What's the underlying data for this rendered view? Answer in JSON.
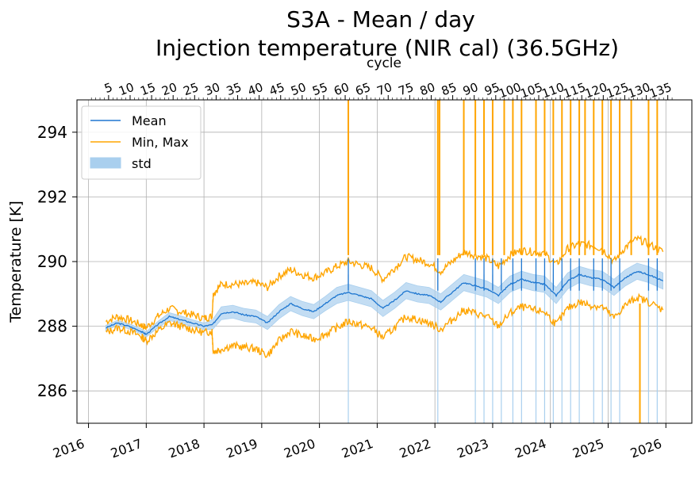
{
  "chart_data": {
    "type": "line",
    "title": "S3A - Mean / day",
    "subtitle": "Injection temperature (NIR cal) (36.5GHz)",
    "ylabel": "Temperature [K]",
    "x2label": "cycle",
    "xlim": [
      2015.8,
      2026.45
    ],
    "ylim": [
      285.0,
      295.0
    ],
    "grid": true,
    "legend_position": "upper-left",
    "yticks": [
      286,
      288,
      290,
      292,
      294
    ],
    "xticks": [
      2016,
      2017,
      2018,
      2019,
      2020,
      2021,
      2022,
      2023,
      2024,
      2025,
      2026
    ],
    "x_tick_labels": [
      "2016",
      "2017",
      "2018",
      "2019",
      "2020",
      "2021",
      "2022",
      "2023",
      "2024",
      "2025",
      "2026"
    ],
    "cycle_ticks": [
      5,
      10,
      15,
      20,
      25,
      30,
      35,
      40,
      45,
      50,
      55,
      60,
      65,
      70,
      75,
      80,
      85,
      90,
      95,
      100,
      105,
      110,
      115,
      120,
      125,
      130,
      135
    ],
    "cycle_tick_labels": [
      "5",
      "10",
      "15",
      "20",
      "25",
      "30",
      "35",
      "40",
      "45",
      "50",
      "55",
      "60",
      "65",
      "70",
      "75",
      "80",
      "85",
      "90",
      "95",
      "100",
      "105",
      "110",
      "115",
      "120",
      "125",
      "130",
      "135"
    ],
    "colors": {
      "mean": "#1f77d0",
      "minmax": "#ffa500",
      "std": "#a9cfee"
    },
    "legend": [
      {
        "key": "mean",
        "label": "Mean"
      },
      {
        "key": "minmax",
        "label": "Min, Max"
      },
      {
        "key": "std",
        "label": "std"
      }
    ],
    "series": [
      {
        "name": "Mean",
        "x": [
          2016.3,
          2016.5,
          2016.7,
          2016.9,
          2017.0,
          2017.2,
          2017.4,
          2017.6,
          2017.8,
          2018.0,
          2018.15,
          2018.3,
          2018.5,
          2018.7,
          2018.9,
          2019.1,
          2019.3,
          2019.5,
          2019.7,
          2019.9,
          2020.1,
          2020.3,
          2020.5,
          2020.7,
          2020.9,
          2021.1,
          2021.3,
          2021.5,
          2021.7,
          2021.9,
          2022.1,
          2022.3,
          2022.5,
          2022.7,
          2022.9,
          2023.1,
          2023.3,
          2023.5,
          2023.7,
          2023.9,
          2024.1,
          2024.3,
          2024.5,
          2024.7,
          2024.9,
          2025.1,
          2025.3,
          2025.5,
          2025.7,
          2025.95
        ],
        "values": [
          287.95,
          288.1,
          288.0,
          287.85,
          287.75,
          288.05,
          288.3,
          288.2,
          288.1,
          288.0,
          288.05,
          288.4,
          288.45,
          288.35,
          288.3,
          288.1,
          288.45,
          288.7,
          288.55,
          288.45,
          288.7,
          288.95,
          289.05,
          288.95,
          288.85,
          288.55,
          288.8,
          289.1,
          289.0,
          288.95,
          288.75,
          289.05,
          289.35,
          289.25,
          289.15,
          288.95,
          289.3,
          289.45,
          289.35,
          289.3,
          288.95,
          289.4,
          289.6,
          289.5,
          289.45,
          289.2,
          289.5,
          289.7,
          289.6,
          289.4
        ],
        "std": [
          0.08,
          0.08,
          0.08,
          0.08,
          0.08,
          0.1,
          0.12,
          0.12,
          0.1,
          0.1,
          0.15,
          0.2,
          0.2,
          0.2,
          0.2,
          0.2,
          0.22,
          0.22,
          0.22,
          0.22,
          0.22,
          0.25,
          0.25,
          0.25,
          0.25,
          0.25,
          0.25,
          0.25,
          0.25,
          0.25,
          0.25,
          0.25,
          0.25,
          0.25,
          0.25,
          0.25,
          0.25,
          0.25,
          0.25,
          0.25,
          0.25,
          0.25,
          0.25,
          0.25,
          0.25,
          0.25,
          0.25,
          0.25,
          0.25,
          0.25
        ]
      },
      {
        "name": "Max",
        "x": [
          2016.3,
          2016.5,
          2016.7,
          2016.9,
          2017.0,
          2017.2,
          2017.4,
          2017.6,
          2017.8,
          2018.0,
          2018.14,
          2018.16,
          2018.3,
          2018.5,
          2018.7,
          2018.9,
          2019.1,
          2019.3,
          2019.5,
          2019.7,
          2019.9,
          2020.1,
          2020.3,
          2020.5,
          2020.7,
          2020.9,
          2021.1,
          2021.3,
          2021.5,
          2021.7,
          2021.9,
          2022.1,
          2022.3,
          2022.5,
          2022.7,
          2022.9,
          2023.1,
          2023.3,
          2023.5,
          2023.7,
          2023.9,
          2024.1,
          2024.3,
          2024.5,
          2024.7,
          2024.9,
          2025.1,
          2025.3,
          2025.5,
          2025.7,
          2025.95
        ],
        "values": [
          288.15,
          288.3,
          288.2,
          288.05,
          287.95,
          288.3,
          288.55,
          288.45,
          288.35,
          288.25,
          288.3,
          289.0,
          289.3,
          289.3,
          289.3,
          289.35,
          289.2,
          289.55,
          289.75,
          289.6,
          289.5,
          289.65,
          289.85,
          290.0,
          289.9,
          289.8,
          289.45,
          289.8,
          290.15,
          290.05,
          289.95,
          289.7,
          290.0,
          290.3,
          290.2,
          290.1,
          289.85,
          290.2,
          290.35,
          290.3,
          290.25,
          289.9,
          290.4,
          290.55,
          290.5,
          290.4,
          290.0,
          290.45,
          290.7,
          290.55,
          290.3
        ]
      },
      {
        "name": "Min",
        "x": [
          2016.3,
          2016.5,
          2016.7,
          2016.9,
          2017.0,
          2017.2,
          2017.4,
          2017.6,
          2017.8,
          2018.0,
          2018.14,
          2018.16,
          2018.3,
          2018.5,
          2018.7,
          2018.9,
          2019.1,
          2019.3,
          2019.5,
          2019.7,
          2019.9,
          2020.1,
          2020.3,
          2020.5,
          2020.7,
          2020.9,
          2021.1,
          2021.3,
          2021.5,
          2021.7,
          2021.9,
          2022.1,
          2022.3,
          2022.5,
          2022.7,
          2022.9,
          2023.1,
          2023.3,
          2023.5,
          2023.7,
          2023.9,
          2024.1,
          2024.3,
          2024.5,
          2024.7,
          2024.9,
          2025.1,
          2025.3,
          2025.5,
          2025.7,
          2025.95
        ],
        "values": [
          287.8,
          287.95,
          287.85,
          287.7,
          287.55,
          287.85,
          288.1,
          288.0,
          287.9,
          287.8,
          287.85,
          287.2,
          287.3,
          287.4,
          287.35,
          287.3,
          287.1,
          287.55,
          287.85,
          287.7,
          287.6,
          287.75,
          287.95,
          288.15,
          288.05,
          287.95,
          287.65,
          287.95,
          288.3,
          288.2,
          288.1,
          287.9,
          288.2,
          288.5,
          288.4,
          288.3,
          288.0,
          288.4,
          288.6,
          288.5,
          288.45,
          288.05,
          288.55,
          288.75,
          288.65,
          288.6,
          288.25,
          288.65,
          288.9,
          288.75,
          288.5
        ]
      }
    ],
    "spikes_up": [
      2020.5,
      2022.05,
      2022.08,
      2022.5,
      2022.7,
      2022.85,
      2023.0,
      2023.2,
      2023.35,
      2023.5,
      2023.75,
      2023.9,
      2024.05,
      2024.2,
      2024.35,
      2024.5,
      2024.6,
      2024.75,
      2024.9,
      2025.05,
      2025.2,
      2025.4,
      2025.7,
      2025.85
    ],
    "spikes_down": [
      2025.55
    ],
    "std_spikes": [
      2020.5,
      2022.05,
      2022.7,
      2022.85,
      2023.0,
      2023.15,
      2023.35,
      2023.5,
      2023.75,
      2023.9,
      2024.05,
      2024.2,
      2024.35,
      2024.5,
      2024.75,
      2024.9,
      2025.05,
      2025.2,
      2025.7,
      2025.85
    ]
  }
}
